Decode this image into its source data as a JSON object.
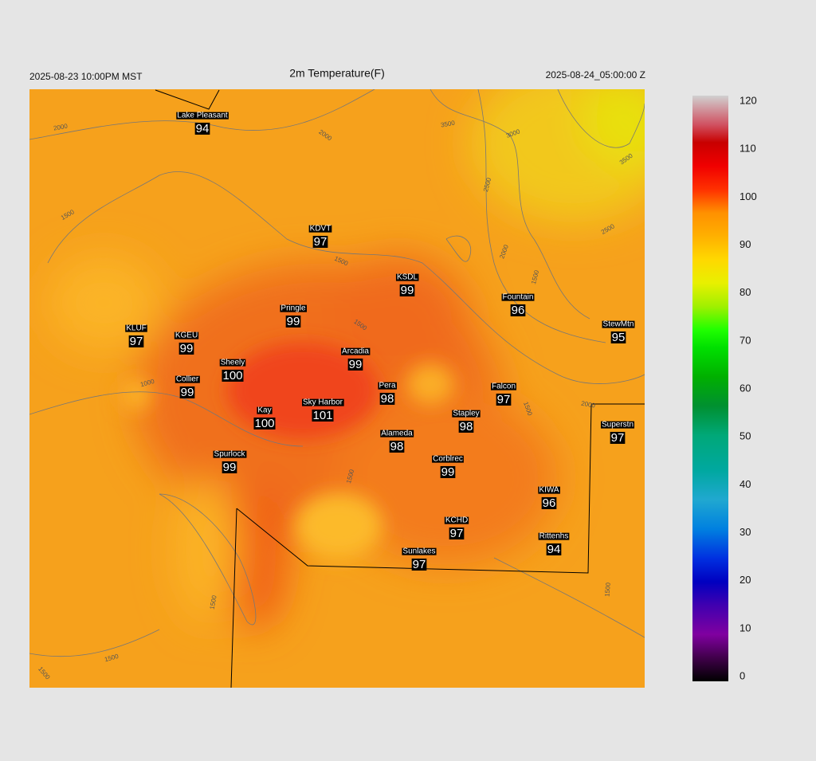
{
  "header": {
    "left": "2025-08-23 10:00PM MST",
    "title": "2m Temperature(F)",
    "right": "2025-08-24_05:00:00 Z"
  },
  "stations": [
    {
      "name": "Lake Pleasant",
      "value": 94
    },
    {
      "name": "KDVT",
      "value": 97
    },
    {
      "name": "KSDL",
      "value": 99
    },
    {
      "name": "Fountain",
      "value": 96
    },
    {
      "name": "Pringle",
      "value": 99
    },
    {
      "name": "StewMtn",
      "value": 95
    },
    {
      "name": "KLUF",
      "value": 97
    },
    {
      "name": "KGEU",
      "value": 99
    },
    {
      "name": "Arcadia",
      "value": 99
    },
    {
      "name": "Sheely",
      "value": 100
    },
    {
      "name": "Collier",
      "value": 99
    },
    {
      "name": "Pera",
      "value": 98
    },
    {
      "name": "Falcon",
      "value": 97
    },
    {
      "name": "Sky Harbor",
      "value": 101
    },
    {
      "name": "Kay",
      "value": 100
    },
    {
      "name": "Stapley",
      "value": 98
    },
    {
      "name": "Superstn",
      "value": 97
    },
    {
      "name": "Alameda",
      "value": 98
    },
    {
      "name": "Spurlock",
      "value": 99
    },
    {
      "name": "Corblrec",
      "value": 99
    },
    {
      "name": "KIWA",
      "value": 96
    },
    {
      "name": "KCHD",
      "value": 97
    },
    {
      "name": "Rittenhs",
      "value": 94
    },
    {
      "name": "Sunlakes",
      "value": 97
    }
  ],
  "contour_labels": [
    2000,
    2000,
    3500,
    3000,
    3500,
    2500,
    2500,
    2000,
    1500,
    1500,
    1500,
    1500,
    1000,
    2000,
    1500,
    1500,
    1500,
    1500,
    1500,
    1500
  ],
  "colorbar": {
    "ticks": [
      0,
      10,
      20,
      30,
      40,
      50,
      60,
      70,
      80,
      90,
      100,
      110,
      120
    ]
  }
}
